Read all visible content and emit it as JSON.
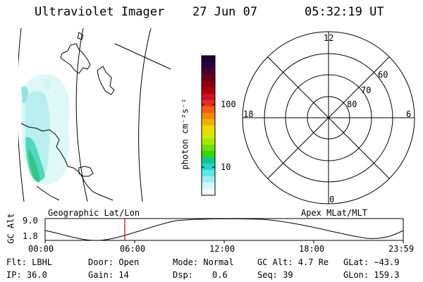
{
  "header": {
    "instrument": "Ultraviolet Imager",
    "date": "27 Jun 07",
    "time": "05:32:19 UT"
  },
  "colorbar": {
    "unit_label": "photon cm⁻²s⁻¹",
    "tick_100": "100",
    "tick_10": "10",
    "colors": [
      "#1a0030",
      "#2a0040",
      "#4a0030",
      "#6a0018",
      "#8a0010",
      "#b00010",
      "#d0102a",
      "#e83020",
      "#f06010",
      "#f08a00",
      "#f0b000",
      "#f0d800",
      "#d8e800",
      "#a8e800",
      "#70e000",
      "#30d800",
      "#10c890",
      "#20d8c8",
      "#60e8e8",
      "#a0f0f0",
      "#d0f8f8",
      "#f0fcfc"
    ]
  },
  "map_panel": {
    "label": "Geographic Lat/Lon"
  },
  "polar_panel": {
    "label": "Apex MLat/MLT",
    "mlt_labels": {
      "top": "12",
      "left": "18",
      "right": "6",
      "bottom": "0"
    },
    "lat_labels": [
      "60",
      "70",
      "80"
    ]
  },
  "altitude_plot": {
    "ylabel": "GC Alt",
    "ytick_top": "9.0",
    "ytick_bottom": "1.8",
    "xticks": [
      "00:00",
      "06:00",
      "12:00",
      "18:00",
      "23:59"
    ],
    "marker_color": "#cc0000"
  },
  "info": {
    "flt": "Flt: LBHL",
    "ip": "IP: 36.0",
    "door": "Door: Open",
    "gain": "Gain: 14",
    "mode": "Mode: Normal",
    "dsp_label": "Dsp:",
    "dsp_value": "0.6",
    "gc_alt": "GC Alt: 4.7 Re",
    "seq": "Seq: 39",
    "glat": "GLat: −43.9",
    "glon": "GLon: 159.3"
  }
}
